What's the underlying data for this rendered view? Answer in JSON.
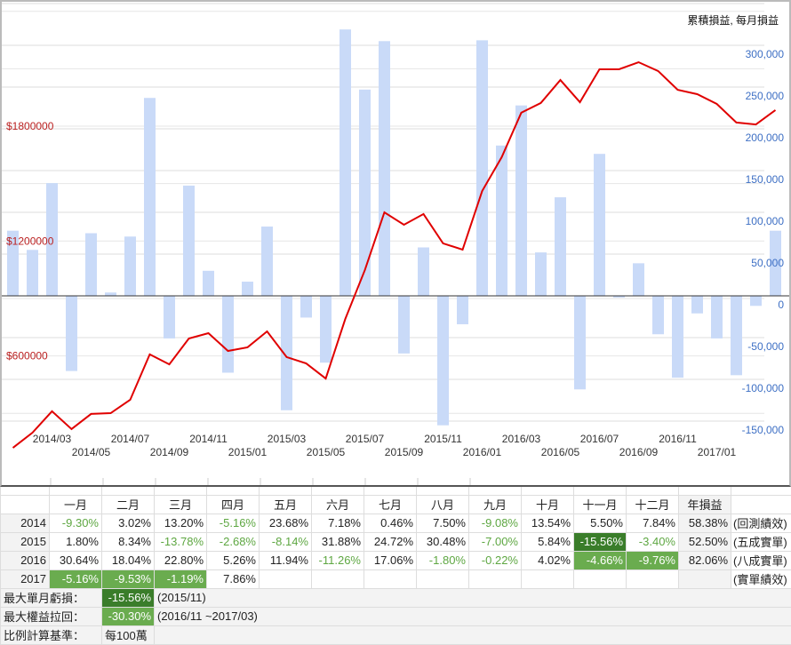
{
  "chart_data": {
    "type": "bar+line",
    "legend": "累積損益, 每月損益",
    "legend_position": "top-right",
    "x": [
      "2014/01",
      "2014/02",
      "2014/03",
      "2014/04",
      "2014/05",
      "2014/06",
      "2014/07",
      "2014/08",
      "2014/09",
      "2014/10",
      "2014/11",
      "2014/12",
      "2015/01",
      "2015/02",
      "2015/03",
      "2015/04",
      "2015/05",
      "2015/06",
      "2015/07",
      "2015/08",
      "2015/09",
      "2015/10",
      "2015/11",
      "2015/12",
      "2016/01",
      "2016/02",
      "2016/03",
      "2016/04",
      "2016/05",
      "2016/06",
      "2016/07",
      "2016/08",
      "2016/09",
      "2016/10",
      "2016/11",
      "2016/12",
      "2017/01",
      "2017/02",
      "2017/03",
      "2017/04"
    ],
    "x_tick_labels_row1": [
      "2014/03",
      "2014/07",
      "2014/11",
      "2015/03",
      "2015/07",
      "2015/11",
      "2016/03",
      "2016/07",
      "2016/11"
    ],
    "x_tick_labels_row2": [
      "2014/05",
      "2014/09",
      "2015/01",
      "2015/05",
      "2015/09",
      "2016/01",
      "2016/05",
      "2016/09",
      "2017/01"
    ],
    "series": [
      {
        "name": "每月損益",
        "type": "bar",
        "axis": "right",
        "color": "#c9daf8",
        "values": [
          78000,
          55000,
          135000,
          -90000,
          75000,
          4000,
          71000,
          237000,
          -51000,
          132000,
          30000,
          -92000,
          17000,
          83000,
          -137000,
          -26000,
          -80000,
          319000,
          247000,
          305000,
          -69000,
          58000,
          -155000,
          -34000,
          306000,
          180000,
          228000,
          52000,
          118000,
          -112000,
          170000,
          -2000,
          39000,
          -46000,
          -98000,
          -21000,
          -51000,
          -95000,
          -12000,
          78000
        ]
      },
      {
        "name": "累積損益",
        "type": "line",
        "axis": "left",
        "color": "#e00000",
        "values": [
          120000,
          199000,
          311000,
          218000,
          297000,
          301000,
          371000,
          608000,
          556000,
          691000,
          719000,
          626000,
          645000,
          728000,
          594000,
          561000,
          482000,
          793000,
          1048000,
          1350000,
          1285000,
          1341000,
          1188000,
          1155000,
          1461000,
          1638000,
          1870000,
          1921000,
          2041000,
          1925000,
          2097000,
          2097000,
          2134000,
          2088000,
          1990000,
          1967000,
          1916000,
          1819000,
          1809000,
          1884000
        ]
      }
    ],
    "right_axis_ticks": [
      "300,000",
      "250,000",
      "200,000",
      "150,000",
      "100,000",
      "50,000",
      "0",
      "-50,000",
      "-100,000",
      "-150,000"
    ],
    "right_axis_values": [
      300000,
      250000,
      200000,
      150000,
      100000,
      50000,
      0,
      -50000,
      -100000,
      -150000
    ],
    "left_axis_ticks": [
      "$1800000",
      "$1200000",
      "$600000"
    ],
    "left_axis_values": [
      1800000,
      1200000,
      600000
    ],
    "grid": true
  },
  "table": {
    "headers": [
      "一月",
      "二月",
      "三月",
      "四月",
      "五月",
      "六月",
      "七月",
      "八月",
      "九月",
      "十月",
      "十一月",
      "十二月",
      "年損益"
    ],
    "rows": [
      {
        "year": "2014",
        "cells": [
          "-9.30%",
          "3.02%",
          "13.20%",
          "-5.16%",
          "23.68%",
          "7.18%",
          "0.46%",
          "7.50%",
          "-9.08%",
          "13.54%",
          "5.50%",
          "7.84%"
        ],
        "total": "58.38%",
        "note": "(回測績效)"
      },
      {
        "year": "2015",
        "cells": [
          "1.80%",
          "8.34%",
          "-13.78%",
          "-2.68%",
          "-8.14%",
          "31.88%",
          "24.72%",
          "30.48%",
          "-7.00%",
          "5.84%",
          "-15.56%",
          "-3.40%"
        ],
        "total": "52.50%",
        "note": "(五成實單)"
      },
      {
        "year": "2016",
        "cells": [
          "30.64%",
          "18.04%",
          "22.80%",
          "5.26%",
          "11.94%",
          "-11.26%",
          "17.06%",
          "-1.80%",
          "-0.22%",
          "4.02%",
          "-4.66%",
          "-9.76%"
        ],
        "total": "82.06%",
        "note": "(八成實單)"
      },
      {
        "year": "2017",
        "cells": [
          "-5.16%",
          "-9.53%",
          "-1.19%",
          "7.86%",
          "",
          "",
          "",
          "",
          "",
          "",
          "",
          ""
        ],
        "total": "",
        "note": "(實單績效)"
      }
    ],
    "highlights": {
      "dark": [
        "1-10"
      ],
      "mid": [
        "2-10",
        "2-11",
        "3-0",
        "3-1",
        "3-2"
      ]
    },
    "summary": [
      {
        "label": "最大單月虧損：",
        "value": "-15.56%",
        "info": "(2015/11)",
        "style": "dark"
      },
      {
        "label": "最大權益拉回：",
        "value": "-30.30%",
        "info": "(2016/11 ~2017/03)",
        "style": "mid"
      },
      {
        "label": "比例計算基準：",
        "value": "每100萬",
        "info": "",
        "style": ""
      }
    ]
  }
}
